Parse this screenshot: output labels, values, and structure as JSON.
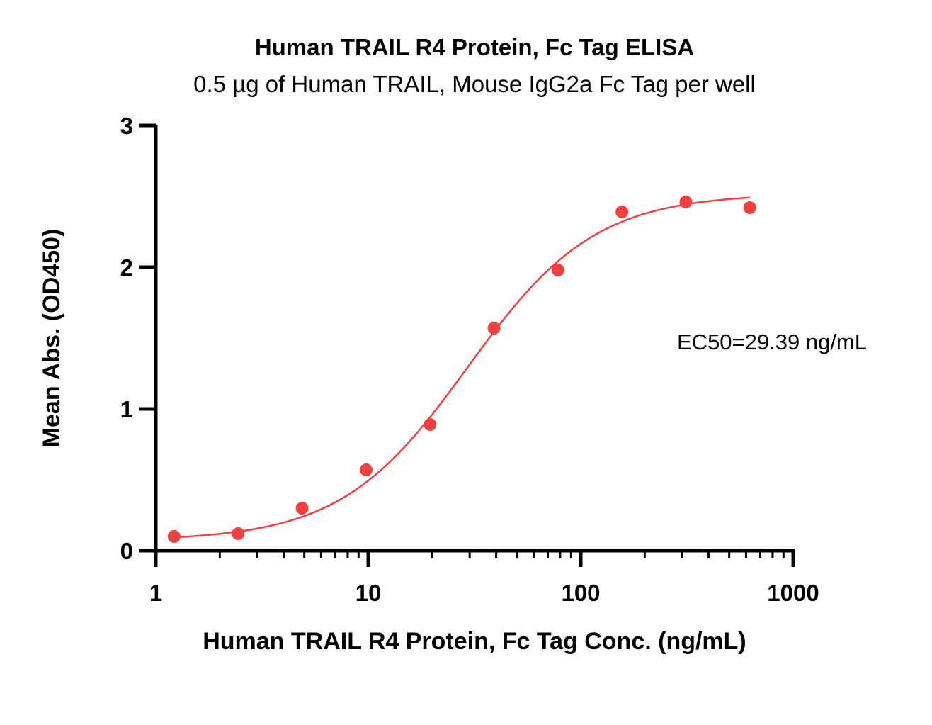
{
  "chart_data": {
    "type": "scatter",
    "title": "Human TRAIL R4 Protein, Fc Tag ELISA",
    "subtitle": "0.5 µg of Human TRAIL, Mouse IgG2a Fc Tag per well",
    "xlabel": "Human TRAIL R4 Protein, Fc Tag Conc. (ng/mL)",
    "ylabel": "Mean Abs. (OD450)",
    "x_scale": "log",
    "xlim": [
      1,
      1000
    ],
    "ylim": [
      0,
      3
    ],
    "x_ticks": [
      "1",
      "10",
      "100",
      "1000"
    ],
    "y_ticks": [
      "0",
      "1",
      "2",
      "3"
    ],
    "grid": false,
    "series": [
      {
        "color": "#f04040",
        "x": [
          1.22,
          2.44,
          4.88,
          9.77,
          19.53,
          39.06,
          78.13,
          156.25,
          312.5,
          625
        ],
        "y": [
          0.1,
          0.12,
          0.3,
          0.57,
          0.89,
          1.57,
          1.98,
          2.39,
          2.46,
          2.42
        ],
        "fit": "4PL"
      }
    ],
    "annotation": "EC50=29.39 ng/mL"
  }
}
